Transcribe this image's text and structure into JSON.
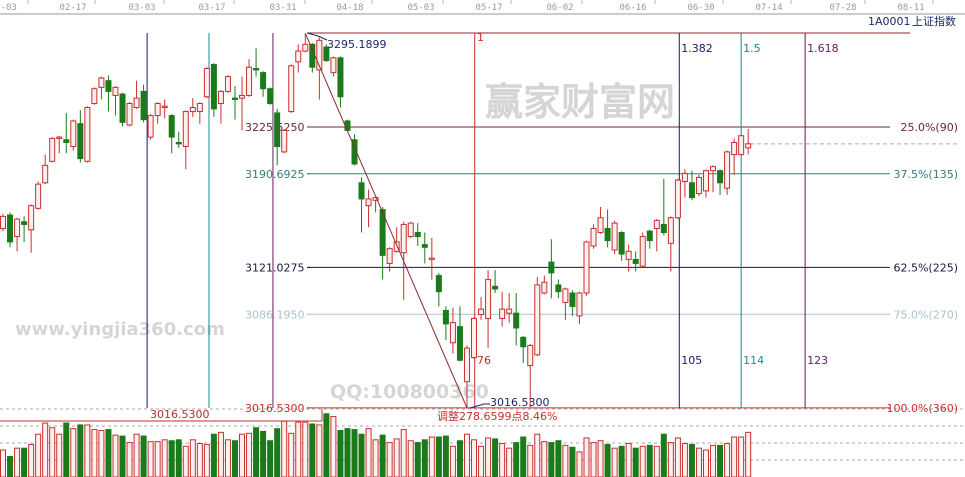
{
  "header": {
    "symbol": "1A0001",
    "name": "上证指数"
  },
  "colors": {
    "up": "#c8302e",
    "up_fill": "#fff0f0",
    "down": "#1b7b1b",
    "grid": "#bdbdbd"
  },
  "watermark": {
    "site_cn": "赢家财富网",
    "site_url": "www.yingjia360.com",
    "qq": "QQ:100800360"
  },
  "annotations": {
    "high_label": "3295.1899",
    "low_label": "3016.5300",
    "left_low_label": "3016.5300",
    "adjust_label": "调整278.6599点8.46%",
    "count_label": "76",
    "start_label": "1"
  },
  "chart_data": {
    "type": "candlestick",
    "x_ticks": [
      "2-03",
      "02-17",
      "03-03",
      "03-17",
      "03-31",
      "04-18",
      "05-03",
      "05-17",
      "06-02",
      "06-16",
      "06-30",
      "07-14",
      "07-28",
      "08-11"
    ],
    "price_range": [
      3016.53,
      3295.19
    ],
    "last_price": 3213,
    "candles_ohlc": [
      [
        3150,
        3161,
        3148,
        3159
      ],
      [
        3160,
        3162,
        3136,
        3140
      ],
      [
        3144,
        3158,
        3133,
        3157
      ],
      [
        3155,
        3159,
        3140,
        3153
      ],
      [
        3149,
        3168,
        3132,
        3167
      ],
      [
        3165,
        3185,
        3164,
        3183
      ],
      [
        3184,
        3205,
        3183,
        3197
      ],
      [
        3200,
        3218,
        3199,
        3217
      ],
      [
        3217,
        3219,
        3206,
        3218
      ],
      [
        3216,
        3236,
        3206,
        3214
      ],
      [
        3211,
        3231,
        3208,
        3230
      ],
      [
        3228,
        3238,
        3199,
        3202
      ],
      [
        3200,
        3241,
        3199,
        3240
      ],
      [
        3243,
        3255,
        3242,
        3254
      ],
      [
        3255,
        3263,
        3246,
        3262
      ],
      [
        3260,
        3264,
        3237,
        3252
      ],
      [
        3249,
        3256,
        3234,
        3255
      ],
      [
        3250,
        3251,
        3226,
        3229
      ],
      [
        3227,
        3244,
        3226,
        3243
      ],
      [
        3240,
        3260,
        3239,
        3247
      ],
      [
        3252,
        3257,
        3229,
        3231
      ],
      [
        3218,
        3235,
        3216,
        3234
      ],
      [
        3234,
        3244,
        3228,
        3243
      ],
      [
        3240,
        3246,
        3232,
        3241
      ],
      [
        3234,
        3235,
        3206,
        3218
      ],
      [
        3214,
        3222,
        3210,
        3213
      ],
      [
        3211,
        3238,
        3194,
        3237
      ],
      [
        3237,
        3247,
        3233,
        3240
      ],
      [
        3237,
        3244,
        3228,
        3243
      ],
      [
        3248,
        3270,
        3247,
        3269
      ],
      [
        3272,
        3273,
        3233,
        3239
      ],
      [
        3243,
        3253,
        3228,
        3252
      ],
      [
        3252,
        3264,
        3251,
        3263
      ],
      [
        3247,
        3256,
        3231,
        3246
      ],
      [
        3247,
        3263,
        3223,
        3249
      ],
      [
        3249,
        3276,
        3248,
        3270
      ],
      [
        3269,
        3284,
        3263,
        3268
      ],
      [
        3266,
        3267,
        3248,
        3254
      ],
      [
        3254,
        3255,
        3242,
        3243
      ],
      [
        3236,
        3239,
        3197,
        3211
      ],
      [
        3207,
        3224,
        3206,
        3223
      ],
      [
        3237,
        3272,
        3236,
        3271
      ],
      [
        3274,
        3287,
        3266,
        3282
      ],
      [
        3282,
        3295.19,
        3281,
        3287
      ],
      [
        3287,
        3288,
        3266,
        3270
      ],
      [
        3268,
        3292,
        3246,
        3290
      ],
      [
        3285,
        3287,
        3274,
        3275
      ],
      [
        3266,
        3278,
        3263,
        3277
      ],
      [
        3277,
        3278,
        3240,
        3248
      ],
      [
        3230,
        3231,
        3222,
        3223
      ],
      [
        3216,
        3220,
        3197,
        3198
      ],
      [
        3184,
        3188,
        3147,
        3172
      ],
      [
        3167,
        3179,
        3151,
        3172
      ],
      [
        3171,
        3174,
        3162,
        3173
      ],
      [
        3164,
        3166,
        3112,
        3130
      ],
      [
        3124,
        3136,
        3118,
        3135
      ],
      [
        3133,
        3151,
        3132,
        3140
      ],
      [
        3132,
        3155,
        3097,
        3153
      ],
      [
        3144,
        3155,
        3143,
        3154
      ],
      [
        3147,
        3154,
        3137,
        3144
      ],
      [
        3138,
        3147,
        3124,
        3136
      ],
      [
        3127,
        3143,
        3112,
        3128
      ],
      [
        3115,
        3117,
        3092,
        3103
      ],
      [
        3089,
        3092,
        3067,
        3079
      ],
      [
        3065,
        3091,
        3057,
        3080
      ],
      [
        3077,
        3092,
        3051,
        3052
      ],
      [
        3036,
        3063,
        3016.53,
        3061
      ],
      [
        3054,
        3084,
        3053,
        3083
      ],
      [
        3086,
        3099,
        3082,
        3090
      ],
      [
        3083,
        3119,
        3061,
        3112
      ],
      [
        3107,
        3119,
        3102,
        3105
      ],
      [
        3083,
        3103,
        3077,
        3090
      ],
      [
        3087,
        3102,
        3080,
        3090
      ],
      [
        3087,
        3102,
        3063,
        3076
      ],
      [
        3069,
        3070,
        3050,
        3062
      ],
      [
        3048,
        3064,
        3017,
        3063
      ],
      [
        3056,
        3114,
        3055,
        3108
      ],
      [
        3102,
        3115,
        3101,
        3110
      ],
      [
        3125,
        3142,
        3098,
        3117
      ],
      [
        3108,
        3112,
        3098,
        3103
      ],
      [
        3095,
        3106,
        3082,
        3105
      ],
      [
        3102,
        3104,
        3085,
        3092
      ],
      [
        3085,
        3103,
        3079,
        3102
      ],
      [
        3102,
        3141,
        3100,
        3140
      ],
      [
        3137,
        3153,
        3135,
        3150
      ],
      [
        3147,
        3166,
        3146,
        3158
      ],
      [
        3150,
        3164,
        3136,
        3141
      ],
      [
        3134,
        3156,
        3131,
        3154
      ],
      [
        3147,
        3148,
        3126,
        3131
      ],
      [
        3127,
        3138,
        3118,
        3133
      ],
      [
        3127,
        3133,
        3118,
        3124
      ],
      [
        3122,
        3147,
        3121,
        3144
      ],
      [
        3148,
        3149,
        3135,
        3141
      ],
      [
        3150,
        3157,
        3133,
        3156
      ],
      [
        3153,
        3187,
        3145,
        3147
      ],
      [
        3139,
        3159,
        3118,
        3158
      ],
      [
        3158,
        3187,
        3157,
        3186
      ],
      [
        3185,
        3194,
        3173,
        3191
      ],
      [
        3184,
        3193,
        3171,
        3173
      ],
      [
        3176,
        3190,
        3174,
        3188
      ],
      [
        3178,
        3194,
        3173,
        3193
      ],
      [
        3193,
        3197,
        3177,
        3196
      ],
      [
        3193,
        3194,
        3175,
        3184
      ],
      [
        3180,
        3208,
        3175,
        3207
      ],
      [
        3205,
        3217,
        3190,
        3214
      ],
      [
        3205,
        3220,
        3204,
        3219
      ],
      [
        3210,
        3224,
        3205,
        3213
      ]
    ],
    "volume": [
      29,
      22,
      31,
      31,
      35,
      46,
      58,
      53,
      46,
      58,
      52,
      56,
      56,
      51,
      50,
      51,
      45,
      44,
      37,
      46,
      44,
      38,
      38,
      40,
      39,
      40,
      33,
      40,
      36,
      35,
      46,
      48,
      40,
      39,
      46,
      47,
      53,
      49,
      39,
      52,
      60,
      47,
      59,
      59,
      57,
      56,
      68,
      65,
      50,
      52,
      51,
      46,
      52,
      40,
      45,
      37,
      41,
      51,
      39,
      37,
      40,
      43,
      43,
      44,
      33,
      39,
      46,
      40,
      33,
      42,
      41,
      36,
      31,
      37,
      43,
      34,
      46,
      38,
      37,
      39,
      34,
      32,
      27,
      42,
      37,
      39,
      35,
      31,
      33,
      36,
      31,
      33,
      34,
      33,
      46,
      37,
      42,
      36,
      35,
      31,
      29,
      34,
      34,
      36,
      43,
      43,
      48
    ],
    "fib_levels": [
      {
        "price_label": "3225.5250",
        "pct_label": "25.0%(90)",
        "price": 3225.525,
        "color": "#6b2a2a"
      },
      {
        "price_label": "3190.6925",
        "pct_label": "37.5%(135)",
        "price": 3190.6925,
        "color": "#3a7a7a"
      },
      {
        "price_label": "3121.0275",
        "pct_label": "62.5%(225)",
        "price": 3121.0275,
        "color": "#1a1a3a"
      },
      {
        "price_label": "3086.1950",
        "pct_label": "75.0%(270)",
        "price": 3086.195,
        "color": "#a9c3cc"
      },
      {
        "price_label": "3016.5300",
        "pct_label": "100.0%(360)",
        "price": 3016.53,
        "color": "#c8302e"
      }
    ],
    "time_lines": [
      {
        "bar": 20.5,
        "label": "",
        "color": "#1a1a6a"
      },
      {
        "bar": 29.3,
        "label": "",
        "color": "#1a8a8a"
      },
      {
        "bar": 38.4,
        "label": "",
        "color": "#6a1a5a"
      },
      {
        "bar": 67.1,
        "label": "",
        "color": "#c8302e"
      },
      {
        "bar": 96.2,
        "label": "1.382",
        "bottom_label": "105",
        "color": "#1a1a6a"
      },
      {
        "bar": 105,
        "label": "1.5",
        "bottom_label": "114",
        "color": "#1a8a8a"
      },
      {
        "bar": 114.1,
        "label": "1.618",
        "bottom_label": "123",
        "color": "#6a1a5a"
      }
    ]
  }
}
